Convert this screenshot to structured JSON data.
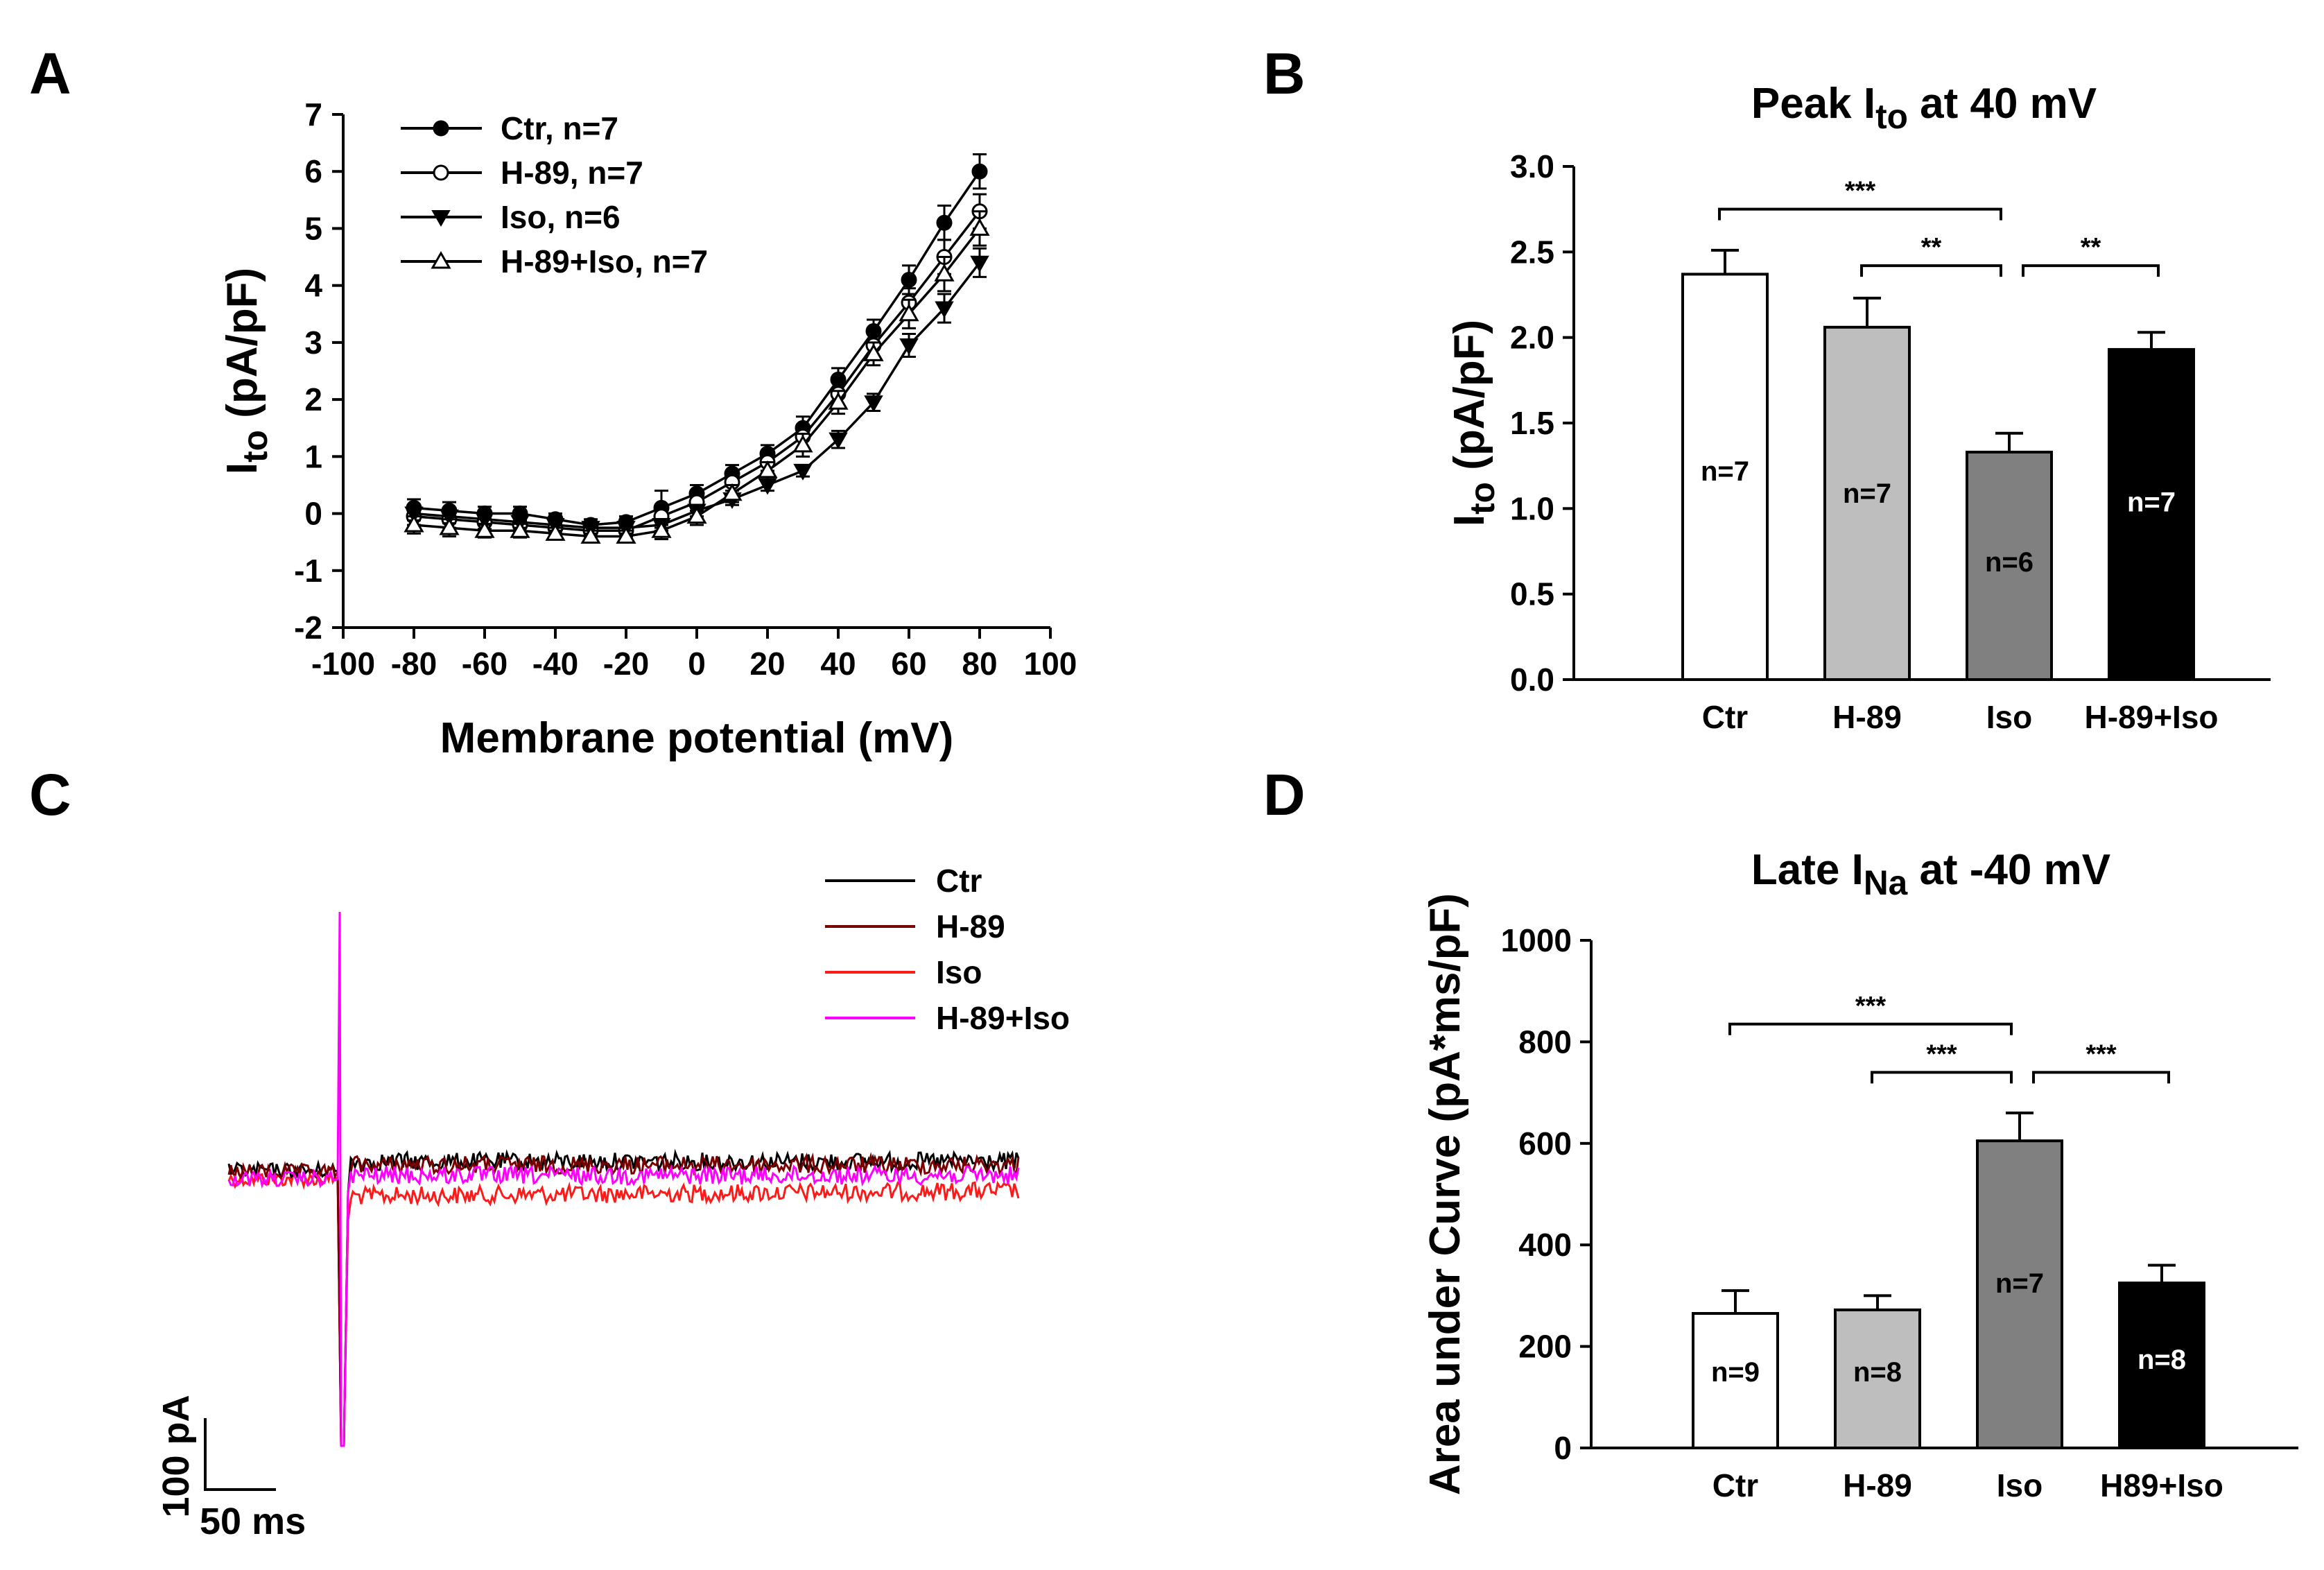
{
  "panels": {
    "A": {
      "letter": "A"
    },
    "B": {
      "letter": "B"
    },
    "C": {
      "letter": "C"
    },
    "D": {
      "letter": "D"
    }
  },
  "chart_data": [
    {
      "panel": "A",
      "type": "line",
      "xlabel": "Membrane potential (mV)",
      "ylabel": {
        "main": "I",
        "sub": "to",
        "unit": " (pA/pF)"
      },
      "xlim": [
        -100,
        100
      ],
      "ylim": [
        -2,
        7
      ],
      "xticks": [
        -100,
        -80,
        -60,
        -40,
        -20,
        0,
        20,
        40,
        60,
        80,
        100
      ],
      "yticks": [
        -2,
        -1,
        0,
        1,
        2,
        3,
        4,
        5,
        6,
        7
      ],
      "x": [
        -80,
        -70,
        -60,
        -50,
        -40,
        -30,
        -20,
        -10,
        0,
        10,
        20,
        30,
        40,
        50,
        60,
        70,
        80
      ],
      "series": [
        {
          "name": "Ctr, n=7",
          "marker": "filled-circle",
          "values": [
            0.1,
            0.05,
            0.0,
            0.0,
            -0.1,
            -0.2,
            -0.15,
            0.1,
            0.35,
            0.7,
            1.05,
            1.5,
            2.35,
            3.2,
            4.1,
            5.1,
            6.0
          ],
          "err": [
            0.15,
            0.15,
            0.12,
            0.12,
            0.1,
            0.1,
            0.1,
            0.3,
            0.15,
            0.15,
            0.15,
            0.2,
            0.2,
            0.2,
            0.25,
            0.3,
            0.3
          ]
        },
        {
          "name": "H-89, n=7",
          "marker": "open-circle",
          "values": [
            -0.05,
            -0.1,
            -0.15,
            -0.2,
            -0.25,
            -0.3,
            -0.3,
            -0.05,
            0.2,
            0.55,
            0.9,
            1.35,
            2.1,
            2.95,
            3.7,
            4.5,
            5.3
          ],
          "err": [
            0.15,
            0.15,
            0.12,
            0.12,
            0.1,
            0.1,
            0.1,
            0.2,
            0.15,
            0.15,
            0.15,
            0.2,
            0.2,
            0.2,
            0.25,
            0.3,
            0.3
          ]
        },
        {
          "name": "Iso, n=6",
          "marker": "filled-triangle-down",
          "values": [
            0.0,
            -0.05,
            -0.1,
            -0.15,
            -0.2,
            -0.25,
            -0.25,
            -0.2,
            0.05,
            0.25,
            0.5,
            0.75,
            1.3,
            1.95,
            2.95,
            3.6,
            4.4
          ],
          "err": [
            0.12,
            0.12,
            0.1,
            0.1,
            0.1,
            0.1,
            0.1,
            0.1,
            0.1,
            0.1,
            0.1,
            0.1,
            0.15,
            0.15,
            0.2,
            0.25,
            0.25
          ]
        },
        {
          "name": "H-89+Iso, n=7",
          "marker": "open-triangle-up",
          "values": [
            -0.2,
            -0.25,
            -0.3,
            -0.3,
            -0.35,
            -0.4,
            -0.4,
            -0.3,
            -0.05,
            0.35,
            0.75,
            1.2,
            1.95,
            2.8,
            3.5,
            4.2,
            5.0
          ],
          "err": [
            0.15,
            0.15,
            0.12,
            0.12,
            0.1,
            0.1,
            0.1,
            0.15,
            0.15,
            0.15,
            0.15,
            0.2,
            0.2,
            0.2,
            0.25,
            0.3,
            0.3
          ]
        }
      ]
    },
    {
      "panel": "B",
      "type": "bar",
      "title": {
        "main": "Peak I",
        "sub": "to",
        "rest": " at 40 mV"
      },
      "ylabel": {
        "main": "I",
        "sub": "to",
        "unit": " (pA/pF)"
      },
      "ylim": [
        0,
        3.0
      ],
      "yticks": [
        "0.0",
        "0.5",
        "1.0",
        "1.5",
        "2.0",
        "2.5",
        "3.0"
      ],
      "categories": [
        "Ctr",
        "H-89",
        "Iso",
        "H-89+Iso"
      ],
      "values": [
        2.37,
        2.06,
        1.33,
        1.93
      ],
      "err": [
        0.14,
        0.17,
        0.11,
        0.1
      ],
      "n_labels": [
        "n=7",
        "n=7",
        "n=6",
        "n=7"
      ],
      "n_label_values": [
        1.22,
        1.09,
        0.69,
        1.04
      ],
      "colors": [
        "#ffffff",
        "#bebebe",
        "#808080",
        "#000000"
      ],
      "label_colors": [
        "#000000",
        "#000000",
        "#000000",
        "#ffffff"
      ],
      "significance": [
        {
          "from": 0,
          "to": 2,
          "label": "***",
          "level": 2.75
        },
        {
          "from": 1,
          "to": 2,
          "label": "**",
          "level": 2.42
        },
        {
          "from": 2,
          "to": 3,
          "label": "**",
          "level": 2.42
        }
      ]
    },
    {
      "panel": "C",
      "type": "line",
      "description": "current traces",
      "legend": [
        {
          "name": "Ctr",
          "color": "#000000"
        },
        {
          "name": "H-89",
          "color": "#7a0000"
        },
        {
          "name": "Iso",
          "color": "#ff1a1a"
        },
        {
          "name": "H-89+Iso",
          "color": "#ff00ff"
        }
      ],
      "scale_bar": {
        "y_label": "100 pA",
        "x_label": "50 ms"
      }
    },
    {
      "panel": "D",
      "type": "bar",
      "title": {
        "main": "Late I",
        "sub": "Na",
        "rest": " at -40 mV"
      },
      "ylabel": {
        "main": "Area under Curve (pA*ms/pF)"
      },
      "ylim": [
        0,
        1000
      ],
      "yticks": [
        "0",
        "200",
        "400",
        "600",
        "800",
        "1000"
      ],
      "categories": [
        "Ctr",
        "H-89",
        "Iso",
        "H89+Iso"
      ],
      "values": [
        265,
        272,
        605,
        325
      ],
      "err": [
        45,
        28,
        55,
        35
      ],
      "n_labels": [
        "n=9",
        "n=8",
        "n=7",
        "n=8"
      ],
      "n_label_values": [
        150,
        150,
        325,
        175
      ],
      "colors": [
        "#ffffff",
        "#bebebe",
        "#808080",
        "#000000"
      ],
      "label_colors": [
        "#000000",
        "#000000",
        "#000000",
        "#ffffff"
      ],
      "significance": [
        {
          "from": 0,
          "to": 2,
          "label": "***",
          "level": 835
        },
        {
          "from": 1,
          "to": 2,
          "label": "***",
          "level": 740
        },
        {
          "from": 2,
          "to": 3,
          "label": "***",
          "level": 740
        }
      ]
    }
  ]
}
